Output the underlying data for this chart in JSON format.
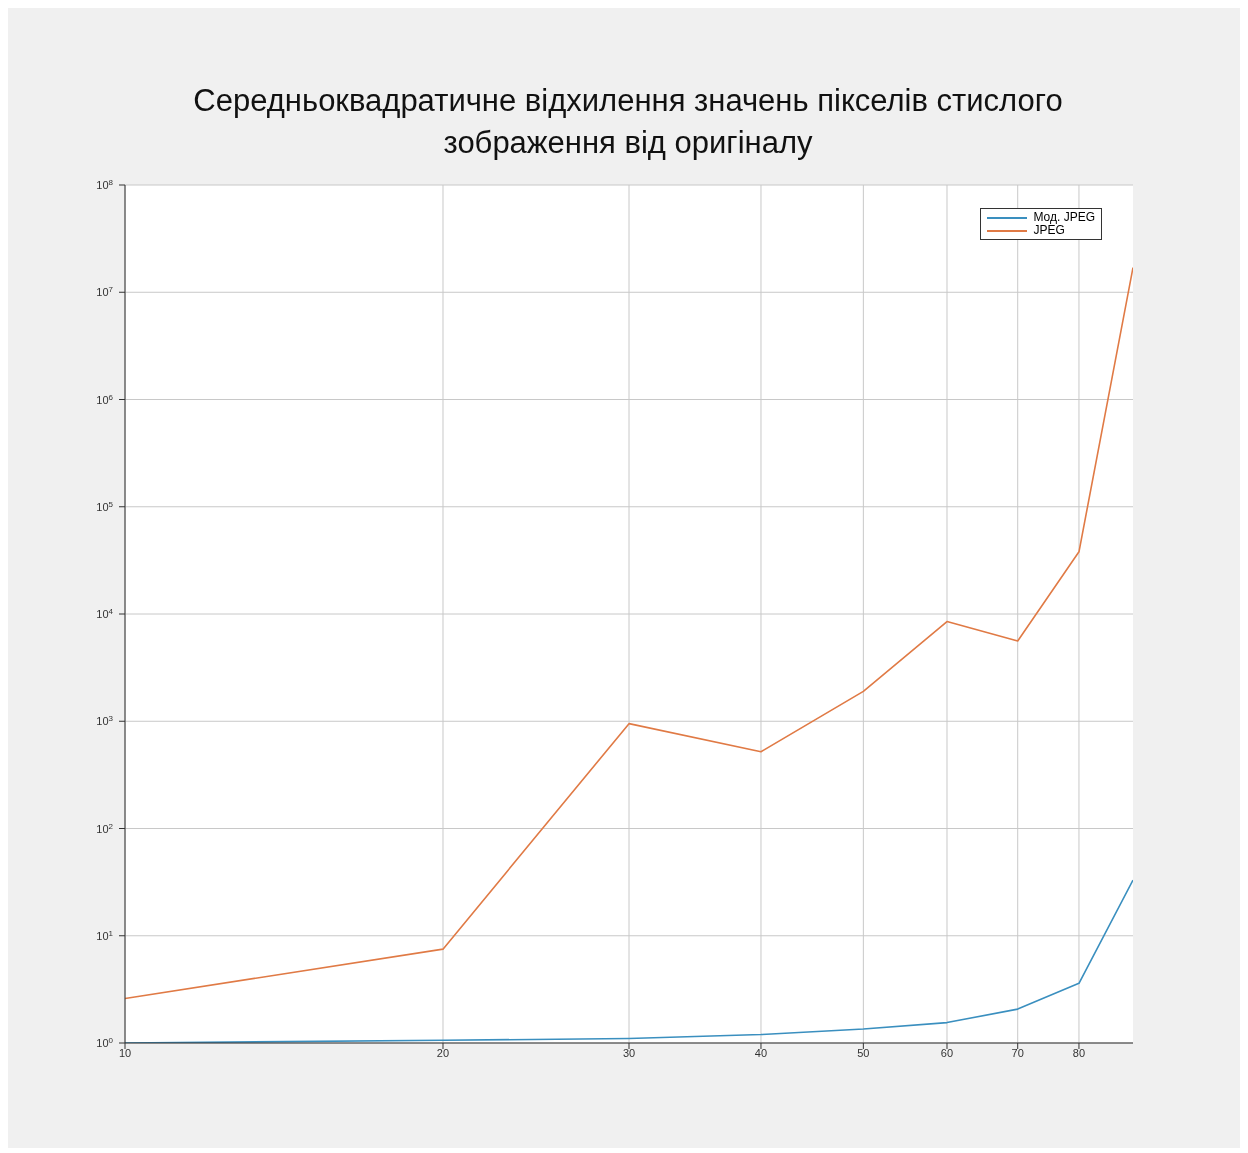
{
  "chart_data": {
    "type": "line",
    "title": "Середньоквадратичне відхилення значень пікселів стислого зображення від оригіналу",
    "x": [
      10,
      20,
      30,
      40,
      50,
      60,
      70,
      80,
      90
    ],
    "series": [
      {
        "name": "Мод. JPEG",
        "color": "#3a8fbf",
        "values": [
          1.0,
          1.06,
          1.1,
          1.2,
          1.35,
          1.55,
          2.07,
          3.6,
          33
        ]
      },
      {
        "name": "JPEG",
        "color": "#e07a45",
        "values": [
          2.6,
          7.5,
          950,
          520,
          1900,
          8500,
          5600,
          38000,
          17000000
        ]
      }
    ],
    "log": "xy",
    "xlim": [
      10,
      90
    ],
    "xticks": [
      10,
      20,
      30,
      40,
      50,
      60,
      70,
      80
    ],
    "ylim": [
      1,
      100000000
    ],
    "yticks": [
      {
        "value": 1,
        "label": "10$^{0}$"
      },
      {
        "value": 10,
        "label": "10$^{1}$"
      },
      {
        "value": 100,
        "label": "10$^{2}$"
      },
      {
        "value": 1000,
        "label": "10$^{3}$"
      },
      {
        "value": 10000,
        "label": "10$^{4}$"
      },
      {
        "value": 100000,
        "label": "10$^{5}$"
      },
      {
        "value": 1000000,
        "label": "10$^{6}$"
      },
      {
        "value": 10000000,
        "label": "10$^{7}$"
      },
      {
        "value": 100000000,
        "label": "10$^{8}$"
      }
    ],
    "grid": true,
    "legend": "top right",
    "marker": "none",
    "line_style": "solid"
  }
}
